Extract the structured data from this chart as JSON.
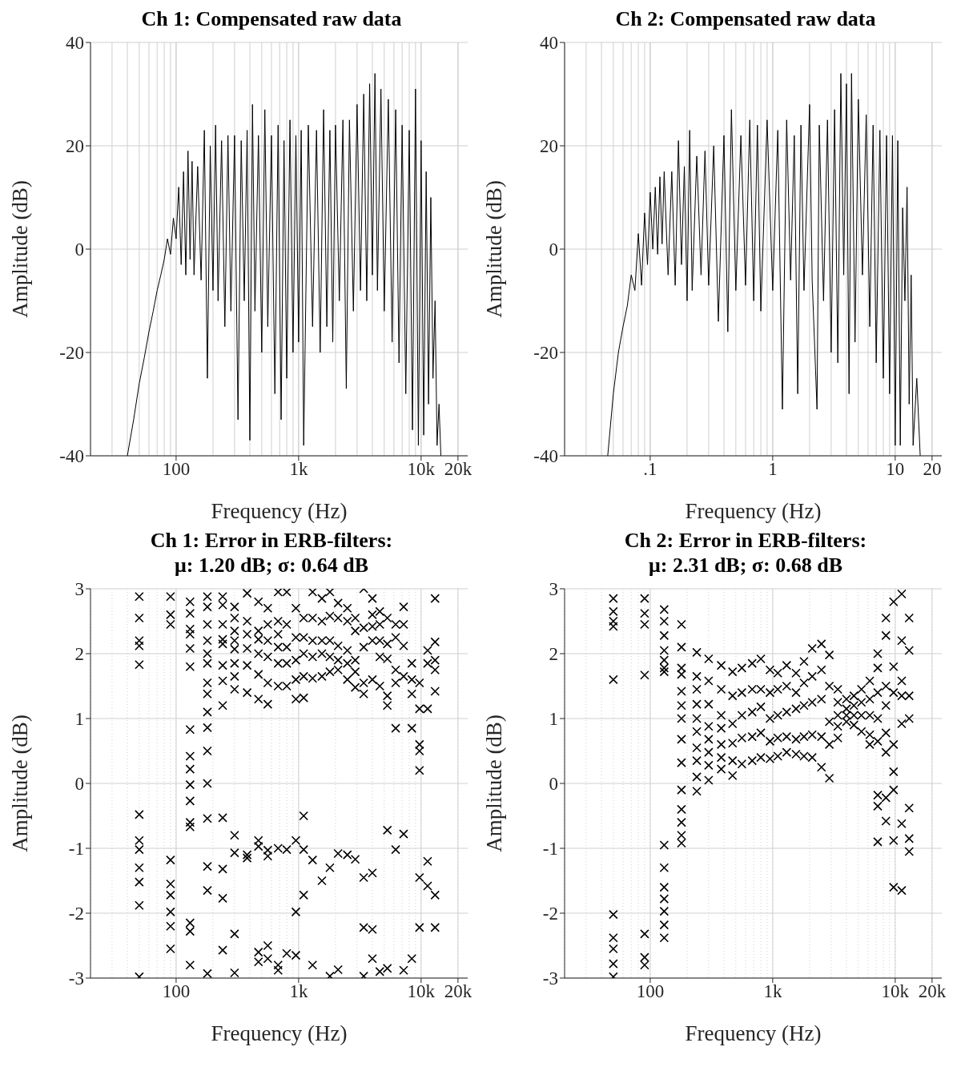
{
  "chart_data": [
    {
      "type": "line",
      "title": "Ch 1: Compensated raw data",
      "xlabel": "Frequency (Hz)",
      "ylabel": "Amplitude (dB)",
      "log": "x",
      "grid": true,
      "xlim": [
        20,
        24000
      ],
      "xticks": [
        {
          "value": 100,
          "label": "100"
        },
        {
          "value": 1000,
          "label": "1k"
        },
        {
          "value": 10000,
          "label": "10k"
        },
        {
          "value": 20000,
          "label": "20k"
        }
      ],
      "ylim": [
        -40,
        40
      ],
      "yticks": [
        -40,
        -20,
        0,
        20,
        40
      ],
      "series": [
        {
          "color": "#000000",
          "x": [
            40,
            45,
            50,
            55,
            60,
            65,
            70,
            75,
            80,
            85,
            90,
            95,
            100,
            105,
            110,
            115,
            120,
            125,
            130,
            135,
            140,
            150,
            160,
            170,
            180,
            190,
            200,
            210,
            220,
            235,
            250,
            265,
            280,
            300,
            320,
            340,
            360,
            380,
            400,
            420,
            440,
            470,
            500,
            530,
            560,
            600,
            640,
            680,
            720,
            760,
            800,
            850,
            900,
            950,
            1000,
            1050,
            1100,
            1200,
            1300,
            1400,
            1500,
            1600,
            1700,
            1800,
            1900,
            2000,
            2150,
            2300,
            2450,
            2600,
            2800,
            3000,
            3200,
            3400,
            3600,
            3800,
            4000,
            4200,
            4400,
            4700,
            5000,
            5400,
            5800,
            6200,
            6600,
            7000,
            7500,
            8000,
            8500,
            9000,
            9500,
            10000,
            10500,
            11000,
            11500,
            12000,
            12500,
            13000,
            13500,
            14000,
            14500
          ],
          "values": [
            -40,
            -33,
            -26,
            -21,
            -16,
            -12,
            -8,
            -5,
            -2,
            2,
            -1,
            6,
            2,
            12,
            -3,
            15,
            -5,
            19,
            -2,
            17,
            -5,
            16,
            -6,
            23,
            -25,
            20,
            -8,
            24,
            -10,
            21,
            -15,
            22,
            -12,
            22,
            -33,
            21,
            -10,
            23,
            -37,
            28,
            -12,
            22,
            -20,
            27,
            -15,
            22,
            -28,
            24,
            -33,
            21,
            -25,
            25,
            -20,
            22,
            -18,
            23,
            -38,
            24,
            -15,
            23,
            -20,
            27,
            -15,
            23,
            -18,
            24,
            -10,
            25,
            -27,
            25,
            -12,
            28,
            -8,
            30,
            -10,
            32,
            -5,
            34,
            -8,
            31,
            -12,
            29,
            -18,
            27,
            -22,
            24,
            -28,
            23,
            -35,
            31,
            -38,
            21,
            -36,
            15,
            -30,
            10,
            -25,
            -10,
            -38,
            -30,
            -40
          ]
        }
      ]
    },
    {
      "type": "line",
      "title": "Ch 2: Compensated raw data",
      "xlabel": "Frequency (Hz)",
      "ylabel": "Amplitude (dB)",
      "log": "x",
      "grid": true,
      "xlim": [
        0.02,
        24
      ],
      "xticks": [
        {
          "value": 0.1,
          "label": ".1"
        },
        1,
        10,
        20
      ],
      "ylim": [
        -40,
        40
      ],
      "yticks": [
        -40,
        -20,
        0,
        20,
        40
      ],
      "series": [
        {
          "color": "#000000",
          "x": [
            0.045,
            0.05,
            0.055,
            0.06,
            0.065,
            0.07,
            0.075,
            0.08,
            0.085,
            0.09,
            0.095,
            0.1,
            0.105,
            0.11,
            0.115,
            0.12,
            0.125,
            0.13,
            0.14,
            0.15,
            0.16,
            0.17,
            0.18,
            0.19,
            0.2,
            0.21,
            0.22,
            0.24,
            0.26,
            0.28,
            0.3,
            0.33,
            0.36,
            0.4,
            0.43,
            0.46,
            0.5,
            0.55,
            0.6,
            0.65,
            0.7,
            0.75,
            0.8,
            0.9,
            1.0,
            1.1,
            1.2,
            1.3,
            1.4,
            1.5,
            1.6,
            1.7,
            1.8,
            2.0,
            2.1,
            2.3,
            2.4,
            2.6,
            2.8,
            3.0,
            3.2,
            3.4,
            3.6,
            3.8,
            4.0,
            4.2,
            4.4,
            4.7,
            5.0,
            5.4,
            5.8,
            6.2,
            6.6,
            7.0,
            7.5,
            8.0,
            8.5,
            9.0,
            9.5,
            10.0,
            10.5,
            11,
            11.5,
            12,
            12.5,
            13,
            13.5,
            14,
            15,
            16
          ],
          "values": [
            -40,
            -28,
            -20,
            -15,
            -11,
            -5,
            -8,
            3,
            -7,
            7,
            -3,
            11,
            0,
            12,
            -1,
            14,
            1,
            15,
            -5,
            15,
            -7,
            21,
            -3,
            16,
            -10,
            23,
            -8,
            18,
            -5,
            19,
            -7,
            20,
            -14,
            22,
            -16,
            27,
            -8,
            22,
            -7,
            25,
            -10,
            24,
            -12,
            25,
            -8,
            23,
            -31,
            25,
            -6,
            22,
            -28,
            24,
            -8,
            28,
            -6,
            -31,
            24,
            -10,
            25,
            -20,
            27,
            -22,
            34,
            -5,
            32,
            -28,
            34,
            -18,
            29,
            -5,
            26,
            -15,
            24,
            -22,
            23,
            -25,
            22,
            -28,
            22,
            -38,
            21,
            -38,
            8,
            -10,
            12,
            -30,
            -5,
            -38,
            -25,
            -40
          ]
        }
      ]
    },
    {
      "type": "scatter",
      "title": "Ch 1: Error in ERB-filters:\nμ: 1.20 dB; σ: 0.64 dB",
      "xlabel": "Frequency (Hz)",
      "ylabel": "Amplitude (dB)",
      "log": "x",
      "grid": true,
      "marker": "cross",
      "xlim": [
        20,
        24000
      ],
      "xticks": [
        {
          "value": 100,
          "label": "100"
        },
        {
          "value": 1000,
          "label": "1k"
        },
        {
          "value": 10000,
          "label": "10k"
        },
        {
          "value": 20000,
          "label": "20k"
        }
      ],
      "ylim": [
        -3,
        3
      ],
      "yticks": [
        -3,
        -2,
        -1,
        0,
        1,
        2,
        3
      ],
      "series": [
        {
          "color": "#000000",
          "x": [
            50,
            50,
            50,
            50,
            50,
            50,
            50,
            50,
            50,
            50,
            50,
            50,
            90,
            90,
            90,
            90,
            90,
            90,
            90,
            90,
            90,
            130,
            130,
            130,
            130,
            130,
            130,
            130,
            130,
            130,
            130,
            130,
            130,
            130,
            130,
            130,
            130,
            180,
            180,
            180,
            180,
            180,
            180,
            180,
            180,
            180,
            180,
            180,
            180,
            180,
            180,
            180,
            180,
            240,
            240,
            240,
            240,
            240,
            240,
            240,
            240,
            240,
            240,
            240,
            240,
            300,
            300,
            300,
            300,
            300,
            300,
            300,
            300,
            300,
            300,
            300,
            300,
            380,
            380,
            380,
            380,
            380,
            380,
            380,
            380,
            470,
            470,
            470,
            470,
            470,
            470,
            470,
            470,
            470,
            470,
            560,
            560,
            560,
            560,
            560,
            560,
            560,
            560,
            560,
            560,
            680,
            680,
            680,
            680,
            680,
            680,
            680,
            680,
            680,
            800,
            800,
            800,
            800,
            800,
            800,
            800,
            950,
            950,
            950,
            950,
            950,
            950,
            950,
            950,
            1100,
            1100,
            1100,
            1100,
            1100,
            1100,
            1100,
            1100,
            1300,
            1300,
            1300,
            1300,
            1300,
            1300,
            1300,
            1550,
            1550,
            1550,
            1550,
            1550,
            1550,
            1800,
            1800,
            1800,
            1800,
            1800,
            1800,
            1800,
            2100,
            2100,
            2100,
            2100,
            2100,
            2100,
            2100,
            2500,
            2500,
            2500,
            2500,
            2500,
            2500,
            2900,
            2900,
            2900,
            2900,
            2900,
            2900,
            3400,
            3400,
            3400,
            3400,
            3400,
            3400,
            3400,
            3400,
            4000,
            4000,
            4000,
            4000,
            4000,
            4000,
            4000,
            4000,
            4600,
            4600,
            4600,
            4600,
            4600,
            4600,
            5300,
            5300,
            5300,
            5300,
            5300,
            5300,
            5300,
            6200,
            6200,
            6200,
            6200,
            6200,
            6200,
            7200,
            7200,
            7200,
            7200,
            7200,
            7200,
            8400,
            8400,
            8400,
            8400,
            8400,
            9700,
            9700,
            9700,
            9700,
            9700,
            9700,
            9700,
            11300,
            11300,
            11300,
            11300,
            11300,
            13000,
            13000,
            13000,
            13000,
            13000,
            13000,
            13000
          ],
          "values": [
            2.88,
            2.55,
            2.2,
            2.12,
            1.83,
            -0.48,
            -0.88,
            -1.02,
            -1.3,
            -1.52,
            -1.88,
            -2.98,
            2.88,
            2.6,
            2.45,
            -1.18,
            -1.55,
            -1.72,
            -1.98,
            -2.2,
            -2.55,
            2.8,
            2.62,
            2.38,
            2.3,
            2.08,
            1.8,
            0.83,
            0.42,
            0.22,
            -0.02,
            -0.27,
            -0.6,
            -0.67,
            -2.15,
            -2.28,
            -2.8,
            2.88,
            2.72,
            2.45,
            2.2,
            2.0,
            1.85,
            1.55,
            1.38,
            1.1,
            0.86,
            0.5,
            0.0,
            -0.54,
            -1.28,
            -1.65,
            -2.93,
            2.88,
            2.75,
            2.45,
            2.22,
            2.15,
            1.82,
            1.58,
            1.2,
            -0.53,
            -1.32,
            -1.77,
            -2.57,
            2.72,
            2.55,
            2.35,
            2.2,
            2.07,
            1.85,
            1.65,
            1.45,
            -0.8,
            -1.07,
            -2.32,
            -2.92,
            2.93,
            2.5,
            2.3,
            2.08,
            1.82,
            1.4,
            -1.1,
            -1.15,
            2.8,
            2.35,
            2.22,
            2.0,
            1.68,
            1.3,
            -0.88,
            -0.97,
            -2.6,
            -2.75,
            2.7,
            2.45,
            2.2,
            1.95,
            1.55,
            1.22,
            -1.03,
            -1.12,
            -2.5,
            -2.7,
            2.95,
            2.5,
            2.3,
            2.1,
            1.85,
            1.5,
            -1.0,
            -2.8,
            -2.88,
            2.95,
            2.45,
            2.1,
            1.85,
            1.5,
            -1.02,
            -2.62,
            2.7,
            2.25,
            1.9,
            1.6,
            1.3,
            -0.88,
            -1.98,
            -2.65,
            2.55,
            2.25,
            2.0,
            1.65,
            1.32,
            -0.5,
            -1.02,
            -1.72,
            2.95,
            2.55,
            2.2,
            1.95,
            1.62,
            -1.18,
            -2.8,
            2.85,
            2.5,
            2.2,
            2.0,
            1.65,
            -1.5,
            2.95,
            2.58,
            2.2,
            1.95,
            1.72,
            -1.3,
            -2.97,
            2.78,
            2.55,
            2.12,
            1.9,
            1.75,
            -1.08,
            -2.87,
            2.7,
            2.5,
            2.05,
            1.85,
            1.6,
            -1.1,
            2.55,
            2.35,
            1.9,
            1.72,
            1.48,
            -1.17,
            3.0,
            2.4,
            2.1,
            1.55,
            1.38,
            -1.45,
            -2.22,
            -2.97,
            2.85,
            2.6,
            2.42,
            2.2,
            1.6,
            -1.38,
            -2.25,
            -2.7,
            2.65,
            2.45,
            2.2,
            1.95,
            1.5,
            -2.9,
            2.55,
            2.15,
            1.92,
            1.35,
            1.2,
            -0.72,
            -2.85,
            2.45,
            2.25,
            1.75,
            1.55,
            0.85,
            -1.02,
            2.72,
            2.45,
            2.12,
            1.65,
            -0.78,
            -2.88,
            1.85,
            1.6,
            1.38,
            0.85,
            -2.7,
            1.55,
            1.15,
            0.6,
            0.5,
            0.2,
            -1.45,
            -2.22,
            2.05,
            1.85,
            1.15,
            -1.2,
            -1.58,
            2.85,
            2.18,
            1.9,
            1.75,
            1.42,
            -1.72,
            -2.22
          ]
        }
      ]
    },
    {
      "type": "scatter",
      "title": "Ch 2: Error in ERB-filters:\nμ: 2.31 dB; σ: 0.68 dB",
      "xlabel": "Frequency (Hz)",
      "ylabel": "Amplitude (dB)",
      "log": "x",
      "grid": true,
      "marker": "cross",
      "xlim": [
        20,
        24000
      ],
      "xticks": [
        {
          "value": 100,
          "label": "100"
        },
        {
          "value": 1000,
          "label": "1k"
        },
        {
          "value": 10000,
          "label": "10k"
        },
        {
          "value": 20000,
          "label": "20k"
        }
      ],
      "ylim": [
        -3,
        3
      ],
      "yticks": [
        -3,
        -2,
        -1,
        0,
        1,
        2,
        3
      ],
      "series": [
        {
          "color": "#000000",
          "x": [
            50,
            50,
            50,
            50,
            50,
            50,
            50,
            50,
            50,
            50,
            90,
            90,
            90,
            90,
            90,
            90,
            90,
            130,
            130,
            130,
            130,
            130,
            130,
            130,
            130,
            130,
            130,
            130,
            130,
            130,
            130,
            180,
            180,
            180,
            180,
            180,
            180,
            180,
            180,
            180,
            180,
            180,
            180,
            180,
            180,
            240,
            240,
            240,
            240,
            240,
            240,
            240,
            240,
            240,
            240,
            300,
            300,
            300,
            300,
            300,
            300,
            300,
            300,
            380,
            380,
            380,
            380,
            380,
            380,
            380,
            470,
            470,
            470,
            470,
            470,
            470,
            560,
            560,
            560,
            560,
            560,
            680,
            680,
            680,
            680,
            680,
            800,
            800,
            800,
            800,
            800,
            950,
            950,
            950,
            950,
            950,
            1100,
            1100,
            1100,
            1100,
            1100,
            1300,
            1300,
            1300,
            1300,
            1300,
            1550,
            1550,
            1550,
            1550,
            1550,
            1800,
            1800,
            1800,
            1800,
            1800,
            2100,
            2100,
            2100,
            2100,
            2100,
            2500,
            2500,
            2500,
            2500,
            2500,
            2900,
            2900,
            2900,
            2900,
            2900,
            3400,
            3400,
            3400,
            3400,
            3400,
            4000,
            4000,
            4000,
            4000,
            4600,
            4600,
            4600,
            4600,
            5300,
            5300,
            5300,
            5300,
            6200,
            6200,
            6200,
            6200,
            6200,
            7200,
            7200,
            7200,
            7200,
            7200,
            7200,
            7200,
            7200,
            8400,
            8400,
            8400,
            8400,
            8400,
            8400,
            8400,
            8400,
            9700,
            9700,
            9700,
            9700,
            9700,
            9700,
            9700,
            9700,
            11300,
            11300,
            11300,
            11300,
            11300,
            11300,
            11300,
            13000,
            13000,
            13000,
            13000,
            13000,
            13000,
            13000
          ],
          "values": [
            2.85,
            2.65,
            2.5,
            2.42,
            1.6,
            -2.02,
            -2.38,
            -2.55,
            -2.78,
            -2.98,
            2.85,
            2.62,
            2.45,
            1.67,
            -2.32,
            -2.68,
            -2.8,
            2.68,
            2.5,
            2.28,
            2.05,
            1.9,
            1.78,
            1.72,
            -0.95,
            -1.3,
            -1.6,
            -1.78,
            -1.97,
            -2.18,
            -2.38,
            2.45,
            2.1,
            1.78,
            1.68,
            1.42,
            1.2,
            1.0,
            0.68,
            0.32,
            -0.1,
            -0.4,
            -0.6,
            -0.8,
            -0.92,
            2.02,
            1.65,
            1.45,
            1.22,
            1.0,
            0.8,
            0.55,
            0.35,
            0.1,
            -0.12,
            1.92,
            1.58,
            1.22,
            0.88,
            0.68,
            0.48,
            0.28,
            0.05,
            1.82,
            1.45,
            1.05,
            0.85,
            0.6,
            0.4,
            0.22,
            1.72,
            1.35,
            0.92,
            0.62,
            0.35,
            0.12,
            1.78,
            1.4,
            1.05,
            0.7,
            0.3,
            1.85,
            1.45,
            1.1,
            0.72,
            0.35,
            1.92,
            1.45,
            1.18,
            0.78,
            0.4,
            1.75,
            1.4,
            1.0,
            0.65,
            0.38,
            1.7,
            1.45,
            1.05,
            0.7,
            0.42,
            1.82,
            1.5,
            1.1,
            0.72,
            0.48,
            1.7,
            1.4,
            1.15,
            0.68,
            0.45,
            1.88,
            1.55,
            1.2,
            0.72,
            0.42,
            2.08,
            1.65,
            1.25,
            0.75,
            0.4,
            2.15,
            1.75,
            1.3,
            0.72,
            0.25,
            1.98,
            1.5,
            0.95,
            0.6,
            0.08,
            1.45,
            1.25,
            1.05,
            0.88,
            0.7,
            1.3,
            1.15,
            1.05,
            0.95,
            1.35,
            1.2,
            1.05,
            0.9,
            1.45,
            1.25,
            1.05,
            0.8,
            1.58,
            1.3,
            1.05,
            0.75,
            0.6,
            2.0,
            1.78,
            1.4,
            1.0,
            0.65,
            -0.18,
            -0.35,
            -0.9,
            2.55,
            2.28,
            1.5,
            1.2,
            0.78,
            0.48,
            -0.22,
            -0.58,
            2.8,
            1.8,
            1.4,
            0.6,
            0.18,
            -0.1,
            -0.88,
            -1.6,
            2.92,
            2.2,
            1.58,
            1.35,
            0.92,
            -0.62,
            -1.65,
            2.55,
            2.05,
            1.35,
            1.0,
            -0.38,
            -0.85,
            -1.05
          ]
        }
      ]
    }
  ]
}
